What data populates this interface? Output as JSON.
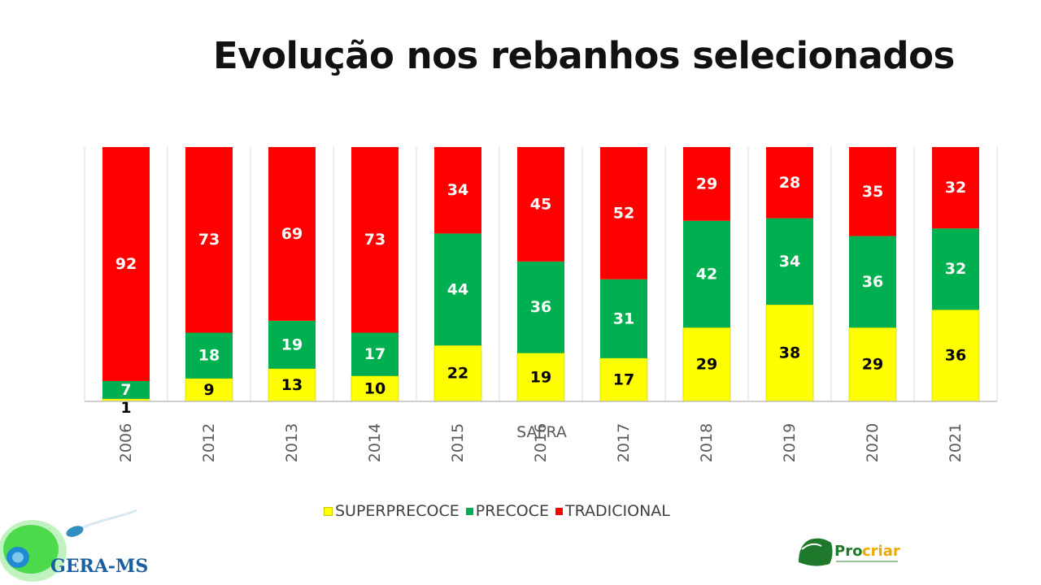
{
  "title": "Evolução nos rebanhos selecionados",
  "colors": {
    "superprecoce": "#ffff00",
    "precoce": "#00b050",
    "tradicional": "#ff0000"
  },
  "chart_data": {
    "type": "bar",
    "stacked": true,
    "percent_stacked": true,
    "title": "Evolução nos rebanhos selecionados",
    "xlabel": "SAFRA",
    "ylabel": "",
    "categories": [
      "2006",
      "2012",
      "2013",
      "2014",
      "2015",
      "2016",
      "2017",
      "2018",
      "2019",
      "2020",
      "2021"
    ],
    "series": [
      {
        "name": "SUPERPRECOCE",
        "color": "#ffff00",
        "values": [
          1,
          9,
          13,
          10,
          22,
          19,
          17,
          29,
          38,
          29,
          36
        ]
      },
      {
        "name": "PRECOCE",
        "color": "#00b050",
        "values": [
          7,
          18,
          19,
          17,
          44,
          36,
          31,
          42,
          34,
          36,
          32
        ]
      },
      {
        "name": "TRADICIONAL",
        "color": "#ff0000",
        "values": [
          92,
          73,
          69,
          73,
          34,
          45,
          52,
          29,
          28,
          35,
          32
        ]
      }
    ],
    "grid": false,
    "legend": "bottom"
  },
  "legend": [
    {
      "label": "SUPERPRECOCE",
      "color": "#ffff00"
    },
    {
      "label": "PRECOCE",
      "color": "#00b050"
    },
    {
      "label": "TRADICIONAL",
      "color": "#ff0000"
    }
  ],
  "logos": {
    "left": "GERA-MS",
    "right": "Procriar"
  }
}
